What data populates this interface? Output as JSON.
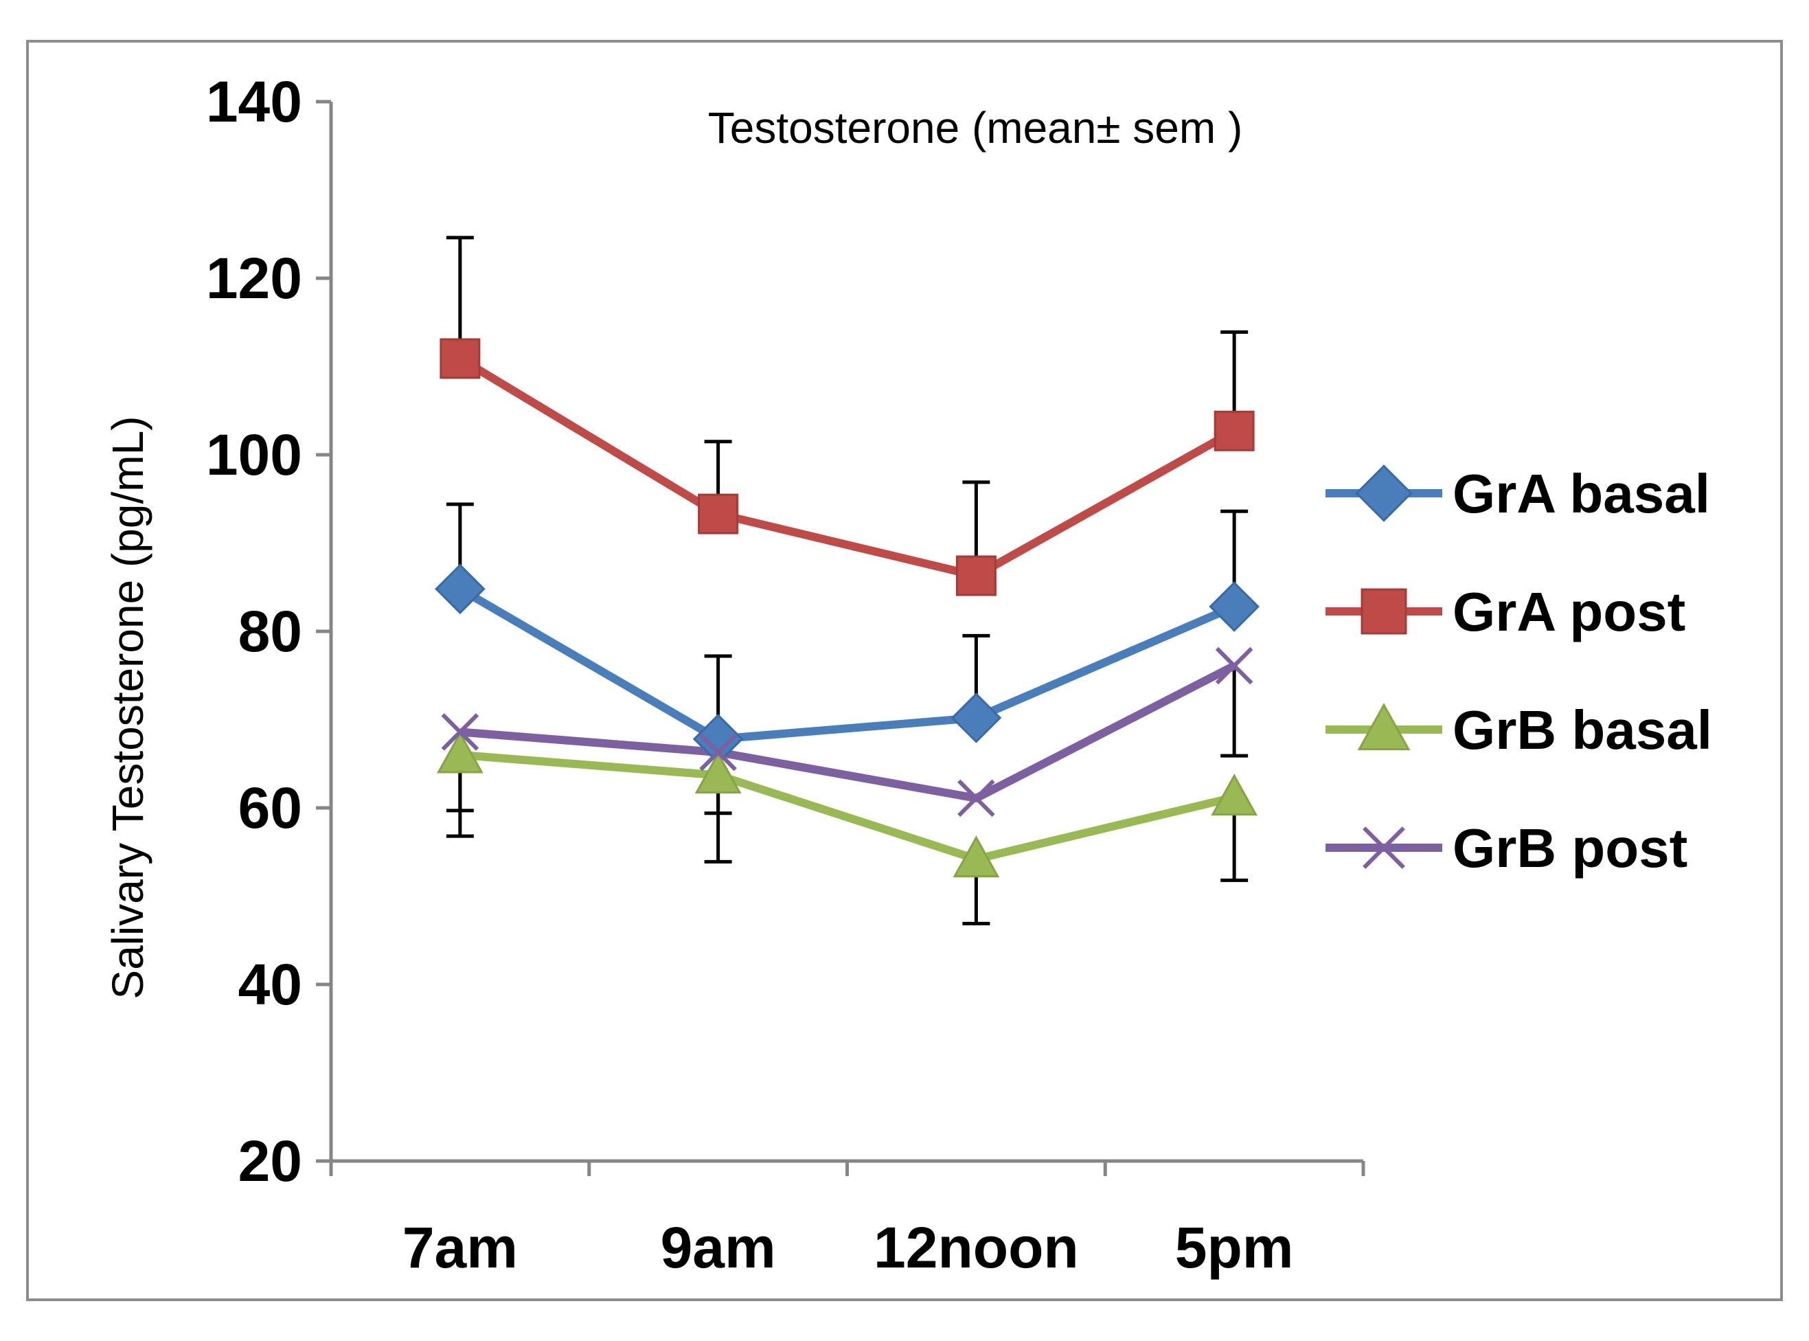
{
  "chart_data": {
    "type": "line",
    "title": "Testosterone (mean± sem )",
    "xlabel": "",
    "ylabel": "Salivary Testosterone (pg/mL)",
    "categories": [
      "7am",
      "9am",
      "12noon",
      "5pm"
    ],
    "ylim": [
      20,
      140
    ],
    "yticks": [
      20,
      40,
      60,
      80,
      100,
      120,
      140
    ],
    "legend_position": "right",
    "grid": false,
    "series": [
      {
        "name": "GrA basal",
        "color": "#4a7ebb",
        "marker": "diamond",
        "values": [
          84.8,
          67.8,
          70.2,
          82.8
        ],
        "error_up": [
          9.6,
          9.4,
          9.3,
          10.8
        ],
        "error_down": [
          0,
          0,
          0,
          0
        ]
      },
      {
        "name": "GrA post",
        "color": "#be4b48",
        "marker": "square",
        "values": [
          110.9,
          93.3,
          86.3,
          102.7
        ],
        "error_up": [
          13.7,
          8.2,
          10.6,
          11.2
        ],
        "error_down": [
          0,
          0,
          0,
          0
        ]
      },
      {
        "name": "GrB basal",
        "color": "#98b954",
        "marker": "triangle",
        "values": [
          66.0,
          63.7,
          54.2,
          61.2
        ],
        "error_up": [
          0,
          0,
          0,
          0
        ],
        "error_down": [
          9.2,
          9.8,
          7.3,
          9.4
        ]
      },
      {
        "name": "GrB post",
        "color": "#7d60a0",
        "marker": "x",
        "values": [
          68.6,
          66.3,
          61.1,
          76.1
        ],
        "error_up": [
          0,
          0,
          0,
          0
        ],
        "error_down": [
          8.9,
          6.9,
          0,
          10.2
        ]
      }
    ]
  }
}
